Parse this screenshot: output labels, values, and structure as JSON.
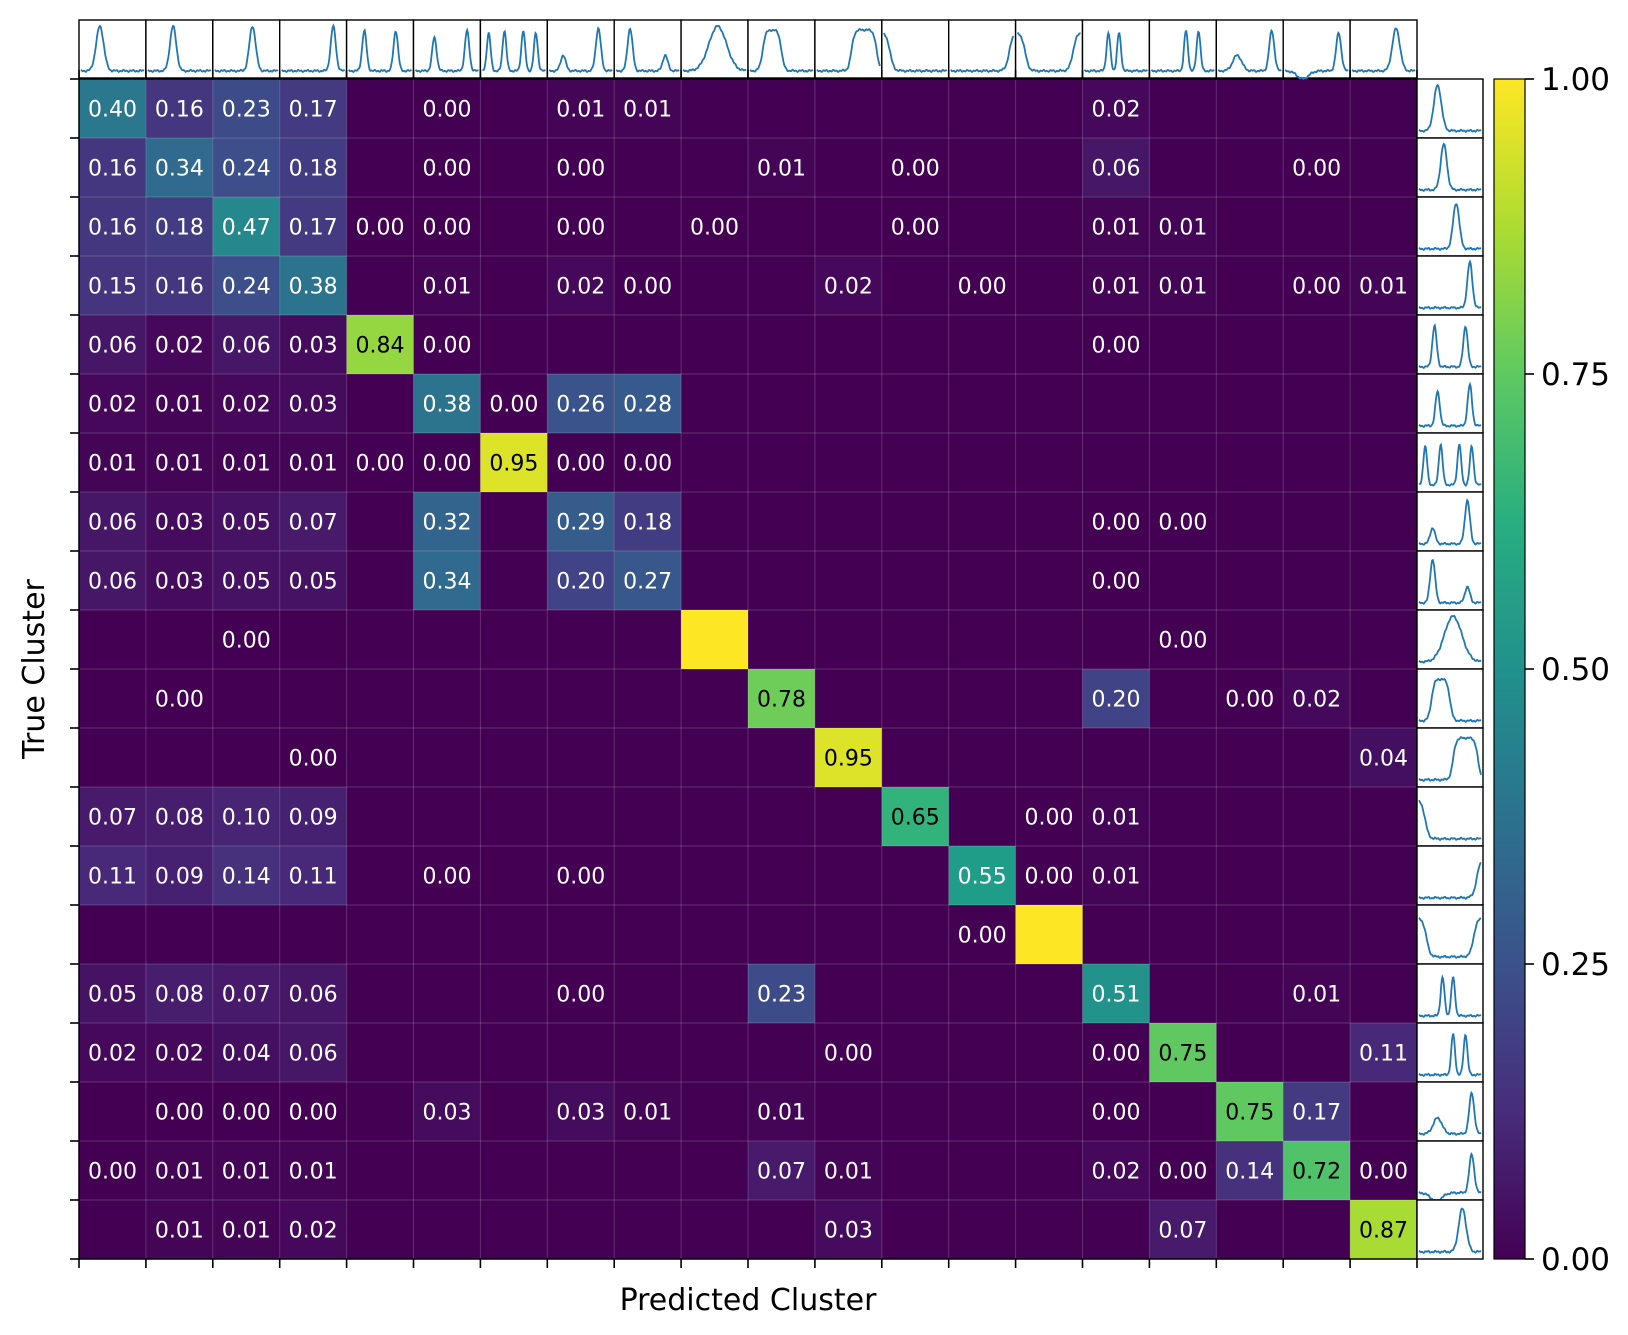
{
  "chart_data": {
    "type": "heatmap",
    "title": "",
    "xlabel": "Predicted Cluster",
    "ylabel": "True Cluster",
    "colormap": "viridis",
    "colorbar": {
      "range": [
        0,
        1
      ],
      "ticks": [
        0,
        0.25,
        0.5,
        0.75,
        1
      ],
      "tick_labels": [
        "0.00",
        "0.25",
        "0.50",
        "0.75",
        "1.00"
      ]
    },
    "n_clusters": 20,
    "cells": [
      [
        0,
        0,
        0.4
      ],
      [
        0,
        1,
        0.16
      ],
      [
        0,
        2,
        0.23
      ],
      [
        0,
        3,
        0.17
      ],
      [
        0,
        5,
        0.0
      ],
      [
        0,
        7,
        0.01
      ],
      [
        0,
        8,
        0.01
      ],
      [
        0,
        15,
        0.02
      ],
      [
        1,
        0,
        0.16
      ],
      [
        1,
        1,
        0.34
      ],
      [
        1,
        2,
        0.24
      ],
      [
        1,
        3,
        0.18
      ],
      [
        1,
        5,
        0.0
      ],
      [
        1,
        7,
        0.0
      ],
      [
        1,
        10,
        0.01
      ],
      [
        1,
        12,
        0.0
      ],
      [
        1,
        15,
        0.06
      ],
      [
        1,
        18,
        0.0
      ],
      [
        2,
        0,
        0.16
      ],
      [
        2,
        1,
        0.18
      ],
      [
        2,
        2,
        0.47
      ],
      [
        2,
        3,
        0.17
      ],
      [
        2,
        4,
        0.0
      ],
      [
        2,
        5,
        0.0
      ],
      [
        2,
        7,
        0.0
      ],
      [
        2,
        9,
        0.0
      ],
      [
        2,
        12,
        0.0
      ],
      [
        2,
        15,
        0.01
      ],
      [
        2,
        16,
        0.01
      ],
      [
        3,
        0,
        0.15
      ],
      [
        3,
        1,
        0.16
      ],
      [
        3,
        2,
        0.24
      ],
      [
        3,
        3,
        0.38
      ],
      [
        3,
        5,
        0.01
      ],
      [
        3,
        7,
        0.02
      ],
      [
        3,
        8,
        0.0
      ],
      [
        3,
        11,
        0.02
      ],
      [
        3,
        13,
        0.0
      ],
      [
        3,
        15,
        0.01
      ],
      [
        3,
        16,
        0.01
      ],
      [
        3,
        18,
        0.0
      ],
      [
        3,
        19,
        0.01
      ],
      [
        4,
        0,
        0.06
      ],
      [
        4,
        1,
        0.02
      ],
      [
        4,
        2,
        0.06
      ],
      [
        4,
        3,
        0.03
      ],
      [
        4,
        4,
        0.84
      ],
      [
        4,
        5,
        0.0
      ],
      [
        4,
        15,
        0.0
      ],
      [
        5,
        0,
        0.02
      ],
      [
        5,
        1,
        0.01
      ],
      [
        5,
        2,
        0.02
      ],
      [
        5,
        3,
        0.03
      ],
      [
        5,
        5,
        0.38
      ],
      [
        5,
        6,
        0.0
      ],
      [
        5,
        7,
        0.26
      ],
      [
        5,
        8,
        0.28
      ],
      [
        6,
        0,
        0.01
      ],
      [
        6,
        1,
        0.01
      ],
      [
        6,
        2,
        0.01
      ],
      [
        6,
        3,
        0.01
      ],
      [
        6,
        4,
        0.0
      ],
      [
        6,
        5,
        0.0
      ],
      [
        6,
        6,
        0.95
      ],
      [
        6,
        7,
        0.0
      ],
      [
        6,
        8,
        0.0
      ],
      [
        7,
        0,
        0.06
      ],
      [
        7,
        1,
        0.03
      ],
      [
        7,
        2,
        0.05
      ],
      [
        7,
        3,
        0.07
      ],
      [
        7,
        5,
        0.32
      ],
      [
        7,
        7,
        0.29
      ],
      [
        7,
        8,
        0.18
      ],
      [
        7,
        15,
        0.0
      ],
      [
        7,
        16,
        0.0
      ],
      [
        8,
        0,
        0.06
      ],
      [
        8,
        1,
        0.03
      ],
      [
        8,
        2,
        0.05
      ],
      [
        8,
        3,
        0.05
      ],
      [
        8,
        5,
        0.34
      ],
      [
        8,
        7,
        0.2
      ],
      [
        8,
        8,
        0.27
      ],
      [
        8,
        15,
        0.0
      ],
      [
        9,
        2,
        0.0
      ],
      [
        9,
        9,
        1.0,
        false
      ],
      [
        9,
        16,
        0.0
      ],
      [
        10,
        1,
        0.0
      ],
      [
        10,
        10,
        0.78
      ],
      [
        10,
        15,
        0.2
      ],
      [
        10,
        17,
        0.0
      ],
      [
        10,
        18,
        0.02
      ],
      [
        11,
        3,
        0.0
      ],
      [
        11,
        11,
        0.95
      ],
      [
        11,
        19,
        0.04
      ],
      [
        12,
        0,
        0.07
      ],
      [
        12,
        1,
        0.08
      ],
      [
        12,
        2,
        0.1
      ],
      [
        12,
        3,
        0.09
      ],
      [
        12,
        12,
        0.65
      ],
      [
        12,
        14,
        0.0
      ],
      [
        12,
        15,
        0.01
      ],
      [
        13,
        0,
        0.11
      ],
      [
        13,
        1,
        0.09
      ],
      [
        13,
        2,
        0.14
      ],
      [
        13,
        3,
        0.11
      ],
      [
        13,
        5,
        0.0
      ],
      [
        13,
        7,
        0.0
      ],
      [
        13,
        13,
        0.55
      ],
      [
        13,
        14,
        0.0
      ],
      [
        13,
        15,
        0.01
      ],
      [
        14,
        13,
        0.0
      ],
      [
        14,
        14,
        1.0,
        false
      ],
      [
        15,
        0,
        0.05
      ],
      [
        15,
        1,
        0.08
      ],
      [
        15,
        2,
        0.07
      ],
      [
        15,
        3,
        0.06
      ],
      [
        15,
        7,
        0.0
      ],
      [
        15,
        10,
        0.23
      ],
      [
        15,
        15,
        0.51
      ],
      [
        15,
        18,
        0.01
      ],
      [
        16,
        0,
        0.02
      ],
      [
        16,
        1,
        0.02
      ],
      [
        16,
        2,
        0.04
      ],
      [
        16,
        3,
        0.06
      ],
      [
        16,
        11,
        0.0
      ],
      [
        16,
        15,
        0.0
      ],
      [
        16,
        16,
        0.75
      ],
      [
        16,
        19,
        0.11
      ],
      [
        17,
        1,
        0.0
      ],
      [
        17,
        2,
        0.0
      ],
      [
        17,
        3,
        0.0
      ],
      [
        17,
        5,
        0.03
      ],
      [
        17,
        7,
        0.03
      ],
      [
        17,
        8,
        0.01
      ],
      [
        17,
        10,
        0.01
      ],
      [
        17,
        15,
        0.0
      ],
      [
        17,
        17,
        0.75
      ],
      [
        17,
        18,
        0.17
      ],
      [
        18,
        0,
        0.0
      ],
      [
        18,
        1,
        0.01
      ],
      [
        18,
        2,
        0.01
      ],
      [
        18,
        3,
        0.01
      ],
      [
        18,
        10,
        0.07
      ],
      [
        18,
        11,
        0.01
      ],
      [
        18,
        15,
        0.02
      ],
      [
        18,
        16,
        0.0
      ],
      [
        18,
        17,
        0.14
      ],
      [
        18,
        18,
        0.72
      ],
      [
        18,
        19,
        0.0
      ],
      [
        19,
        1,
        0.01
      ],
      [
        19,
        2,
        0.01
      ],
      [
        19,
        3,
        0.02
      ],
      [
        19,
        11,
        0.03
      ],
      [
        19,
        16,
        0.07
      ],
      [
        19,
        19,
        0.87
      ]
    ],
    "profile_color": "#1f77b4",
    "profiles": [
      {
        "type": "peaks",
        "peaks": [
          [
            0.3,
            0.06,
            1.0
          ]
        ]
      },
      {
        "type": "peaks",
        "peaks": [
          [
            0.4,
            0.05,
            1.0
          ]
        ]
      },
      {
        "type": "peaks",
        "peaks": [
          [
            0.6,
            0.05,
            1.0
          ]
        ]
      },
      {
        "type": "peaks",
        "peaks": [
          [
            0.82,
            0.04,
            1.0
          ]
        ]
      },
      {
        "type": "peaks",
        "peaks": [
          [
            0.25,
            0.035,
            0.9
          ],
          [
            0.75,
            0.035,
            0.9
          ]
        ]
      },
      {
        "type": "peaks",
        "peaks": [
          [
            0.3,
            0.035,
            0.75
          ],
          [
            0.82,
            0.035,
            0.9
          ]
        ]
      },
      {
        "type": "peaks",
        "peaks": [
          [
            0.1,
            0.03,
            0.85
          ],
          [
            0.35,
            0.03,
            0.9
          ],
          [
            0.65,
            0.03,
            0.9
          ],
          [
            0.85,
            0.03,
            0.85
          ]
        ]
      },
      {
        "type": "peaks",
        "peaks": [
          [
            0.22,
            0.04,
            0.35
          ],
          [
            0.78,
            0.04,
            0.95
          ]
        ]
      },
      {
        "type": "peaks",
        "peaks": [
          [
            0.22,
            0.04,
            0.95
          ],
          [
            0.78,
            0.04,
            0.35
          ]
        ]
      },
      {
        "type": "peaks",
        "peaks": [
          [
            0.55,
            0.14,
            1.0
          ]
        ]
      },
      {
        "type": "plateau",
        "left": 0.2,
        "right": 0.5
      },
      {
        "type": "plateau",
        "left": 0.55,
        "right": 0.95
      },
      {
        "type": "left_edge"
      },
      {
        "type": "right_edge"
      },
      {
        "type": "well"
      },
      {
        "type": "peaks",
        "peaks": [
          [
            0.38,
            0.03,
            0.85
          ],
          [
            0.55,
            0.03,
            0.85
          ]
        ]
      },
      {
        "type": "peaks",
        "peaks": [
          [
            0.55,
            0.03,
            0.9
          ],
          [
            0.75,
            0.03,
            0.9
          ]
        ]
      },
      {
        "type": "peaks",
        "peaks": [
          [
            0.3,
            0.07,
            0.35
          ],
          [
            0.85,
            0.04,
            0.9
          ]
        ]
      },
      {
        "type": "peaks",
        "peaks": [
          [
            0.28,
            0.09,
            -0.18
          ],
          [
            0.85,
            0.04,
            0.85
          ]
        ]
      },
      {
        "type": "peaks",
        "peaks": [
          [
            0.7,
            0.06,
            0.95
          ]
        ]
      }
    ]
  }
}
